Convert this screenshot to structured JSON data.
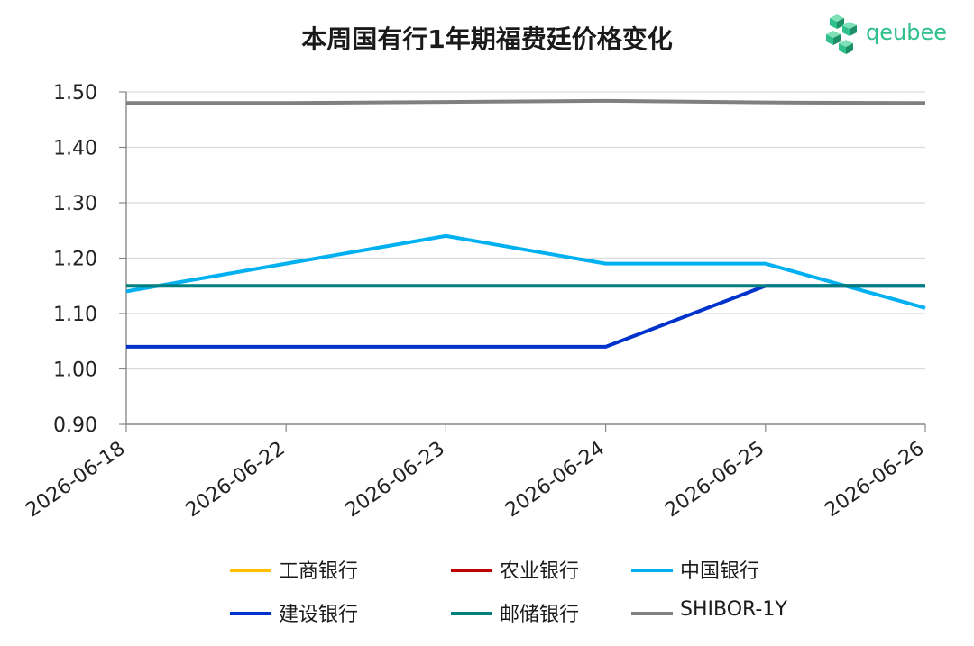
{
  "chart_data": {
    "type": "line",
    "title": "本周国有行1年期福费廷价格变化",
    "categories": [
      "2026-06-18",
      "2026-06-22",
      "2026-06-23",
      "2026-06-24",
      "2026-06-25",
      "2026-06-26"
    ],
    "ylim": [
      0.9,
      1.5
    ],
    "yticks": [
      "0.90",
      "1.00",
      "1.10",
      "1.20",
      "1.30",
      "1.40",
      "1.50"
    ],
    "grid": true,
    "legend_position": "bottom",
    "series": [
      {
        "name": "工商银行",
        "color": "#FFC000",
        "values": [
          null,
          null,
          null,
          null,
          null,
          null
        ]
      },
      {
        "name": "农业银行",
        "color": "#C00000",
        "values": [
          null,
          null,
          null,
          null,
          null,
          null
        ]
      },
      {
        "name": "中国银行",
        "color": "#00B0F0",
        "values": [
          1.14,
          1.19,
          1.24,
          1.19,
          1.19,
          1.11
        ]
      },
      {
        "name": "建设银行",
        "color": "#0033CC",
        "values": [
          1.04,
          1.04,
          1.04,
          1.04,
          1.15,
          1.15
        ]
      },
      {
        "name": "邮储银行",
        "color": "#007F7F",
        "values": [
          1.15,
          1.15,
          1.15,
          1.15,
          1.15,
          1.15
        ]
      },
      {
        "name": "SHIBOR-1Y",
        "color": "#808080",
        "values": [
          1.48,
          1.48,
          1.482,
          1.484,
          1.481,
          1.48
        ]
      }
    ]
  },
  "logo": {
    "text": "qeubee",
    "icon": "cube-cluster-icon",
    "color": "#2fc08c"
  }
}
